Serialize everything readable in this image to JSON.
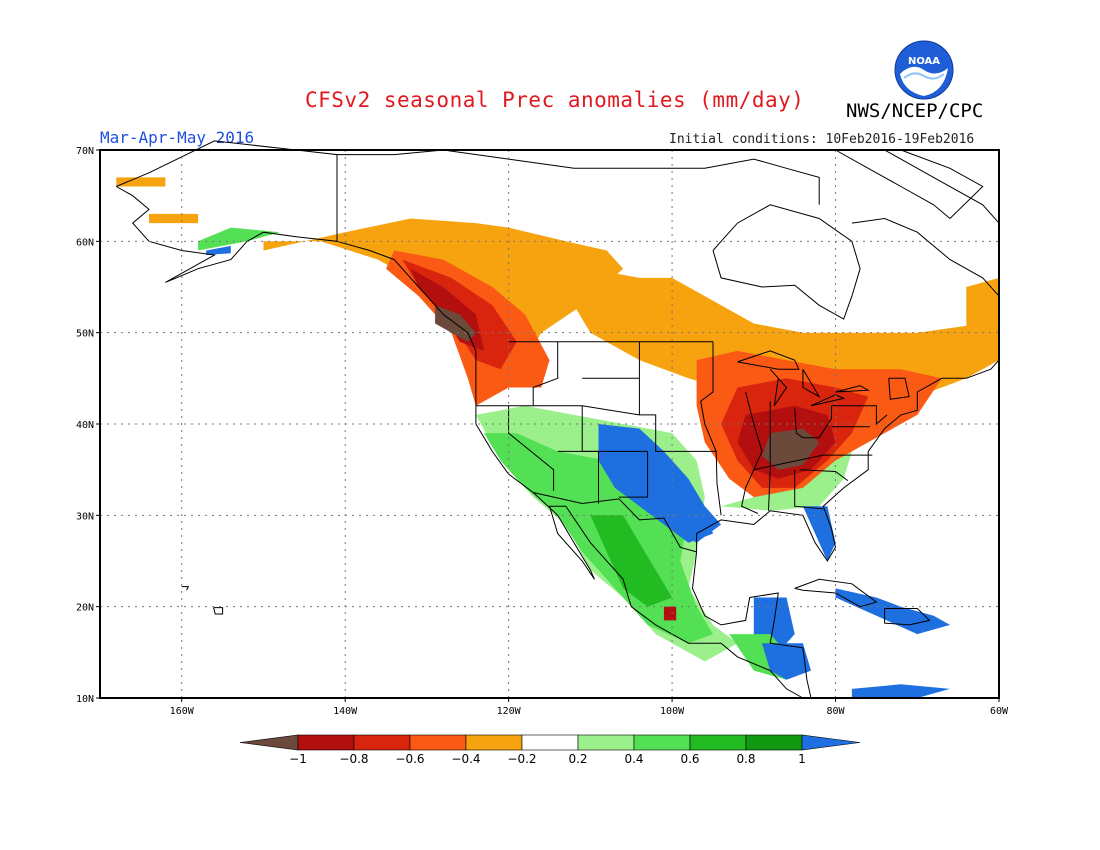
{
  "header": {
    "title": "CFSv2 seasonal Prec anomalies (mm/day)",
    "agency": "NWS/NCEP/CPC",
    "period": "Mar-Apr-May 2016",
    "initial_conditions": "Initial conditions: 10Feb2016-19Feb2016",
    "logo_text": "NOAA"
  },
  "map": {
    "lat_labels": [
      "70N",
      "60N",
      "50N",
      "40N",
      "30N",
      "20N",
      "10N"
    ],
    "lon_labels": [
      "160W",
      "140W",
      "120W",
      "100W",
      "80W",
      "60W"
    ]
  },
  "legend": {
    "ticks": [
      "−1",
      "−0.8",
      "−0.6",
      "−0.4",
      "−0.2",
      "0.2",
      "0.4",
      "0.6",
      "0.8",
      "1"
    ],
    "colors": [
      "#6b4a3c",
      "#b40f0f",
      "#d9250e",
      "#fa5a14",
      "#f7a30f",
      "#ffffff",
      "#9cf08c",
      "#54e054",
      "#22bb22",
      "#119911",
      "#1e6fe0"
    ],
    "units": "mm/day"
  }
}
